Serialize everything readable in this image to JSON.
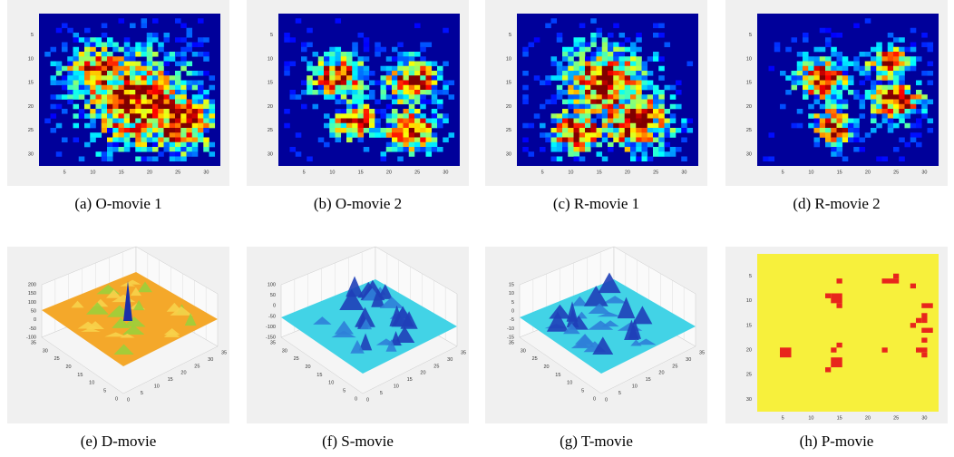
{
  "panels": [
    {
      "caption": "(a) O-movie 1",
      "xticks": [
        5,
        10,
        15,
        20,
        25,
        30
      ],
      "yticks": [
        5,
        10,
        15,
        20,
        25,
        30
      ]
    },
    {
      "caption": "(b) O-movie 2",
      "xticks": [
        5,
        10,
        15,
        20,
        25,
        30
      ],
      "yticks": [
        5,
        10,
        15,
        20,
        25,
        30
      ]
    },
    {
      "caption": "(c) R-movie 1",
      "xticks": [
        5,
        10,
        15,
        20,
        25,
        30
      ],
      "yticks": [
        5,
        10,
        15,
        20,
        25,
        30
      ]
    },
    {
      "caption": "(d) R-movie 2",
      "xticks": [
        5,
        10,
        15,
        20,
        25,
        30
      ],
      "yticks": [
        5,
        10,
        15,
        20,
        25,
        30
      ]
    },
    {
      "caption": "(e) D-movie",
      "zticks": [
        200,
        150,
        100,
        50,
        0,
        -50,
        -100
      ],
      "yticks": [
        35,
        30,
        25,
        20,
        15,
        10,
        5,
        0
      ],
      "xticks": [
        0,
        5,
        10,
        15,
        20,
        25,
        30,
        35
      ]
    },
    {
      "caption": "(f) S-movie",
      "zticks": [
        100,
        50,
        0,
        -50,
        -100,
        -150
      ],
      "yticks": [
        35,
        30,
        25,
        20,
        15,
        10,
        5,
        0
      ],
      "xticks": [
        0,
        5,
        10,
        15,
        20,
        25,
        30,
        35
      ]
    },
    {
      "caption": "(g) T-movie",
      "zticks": [
        15,
        10,
        5,
        0,
        -5,
        -10,
        -15
      ],
      "yticks": [
        35,
        30,
        25,
        20,
        15,
        10,
        5,
        0
      ],
      "xticks": [
        0,
        5,
        10,
        15,
        20,
        25,
        30,
        35
      ]
    },
    {
      "caption": "(h) P-movie",
      "xticks": [
        5,
        10,
        15,
        20,
        25,
        30
      ],
      "yticks": [
        5,
        10,
        15,
        20,
        25,
        30
      ]
    }
  ]
}
